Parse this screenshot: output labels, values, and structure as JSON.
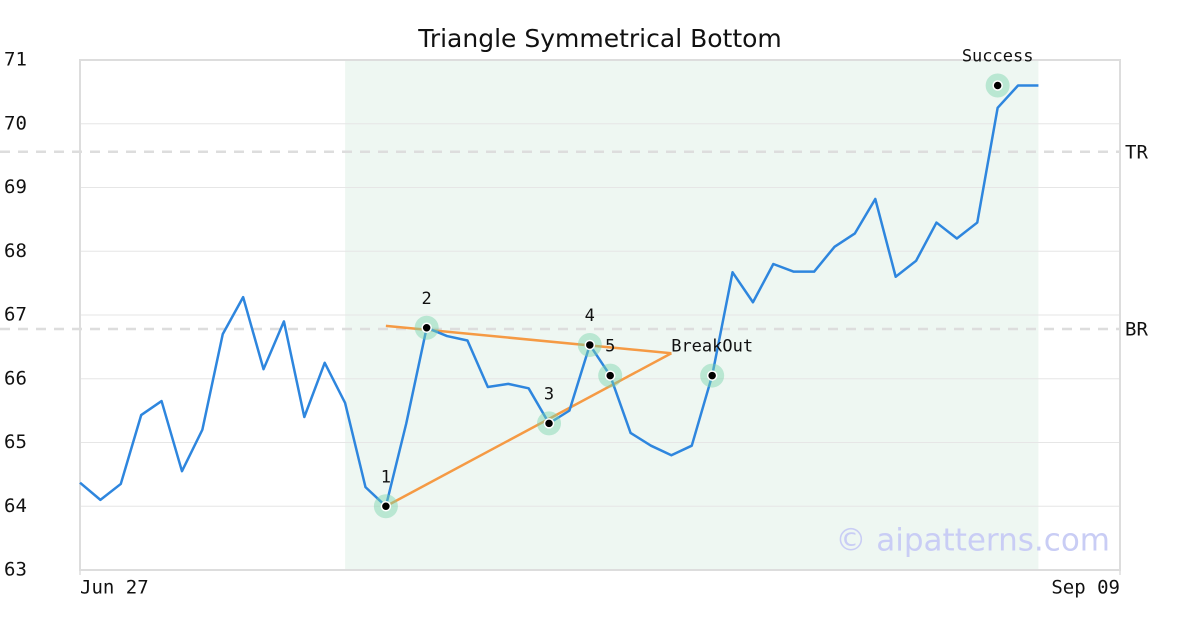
{
  "chart_data": {
    "type": "line",
    "title": "Triangle Symmetrical Bottom",
    "x": [
      0,
      1,
      2,
      3,
      4,
      5,
      6,
      7,
      8,
      9,
      10,
      11,
      12,
      13,
      14,
      15,
      16,
      17,
      18,
      19,
      20,
      21,
      22,
      23,
      24,
      25,
      26,
      27,
      28,
      29,
      30,
      31,
      32,
      33,
      34,
      35,
      36,
      37,
      38,
      39,
      40,
      41,
      42,
      43,
      44,
      45,
      46,
      47
    ],
    "values": [
      64.37,
      64.1,
      64.35,
      65.43,
      65.65,
      64.55,
      65.2,
      66.7,
      67.28,
      66.15,
      66.9,
      65.4,
      66.25,
      65.62,
      64.3,
      64.0,
      65.3,
      66.8,
      66.67,
      66.6,
      65.87,
      65.92,
      65.85,
      65.3,
      65.5,
      66.53,
      66.05,
      65.15,
      64.95,
      64.8,
      64.95,
      66.05,
      67.67,
      67.2,
      67.8,
      67.68,
      67.68,
      68.07,
      68.28,
      68.82,
      67.6,
      67.85,
      68.45,
      68.2,
      68.45,
      70.25,
      70.6,
      70.6
    ],
    "color": "#2e86de",
    "xlim": [
      0,
      51
    ],
    "xticks": [
      {
        "value": 0,
        "label": "Jun 27"
      },
      {
        "value": 51,
        "label": "Sep 09"
      }
    ],
    "ylim": [
      63,
      71
    ],
    "yticks": [
      63,
      64,
      65,
      66,
      67,
      68,
      69,
      70,
      71
    ],
    "grid": true,
    "shade": {
      "x": [
        13,
        47
      ],
      "color": "#eef7f2"
    },
    "hlines": [
      {
        "label": "TR",
        "value": 69.56
      },
      {
        "label": "BR",
        "value": 66.78
      }
    ],
    "trendlines": {
      "color": "#f59a44",
      "lines": [
        {
          "x": [
            15,
            29
          ],
          "y": [
            66.83,
            66.4
          ]
        },
        {
          "x": [
            15,
            29
          ],
          "y": [
            64.0,
            66.4
          ]
        }
      ]
    },
    "markers": [
      {
        "label": "1",
        "x": 15,
        "y": 64.0
      },
      {
        "label": "2",
        "x": 17,
        "y": 66.8
      },
      {
        "label": "3",
        "x": 23,
        "y": 65.3
      },
      {
        "label": "4",
        "x": 25,
        "y": 66.53
      },
      {
        "label": "5",
        "x": 26,
        "y": 66.05
      },
      {
        "label": "BreakOut",
        "x": 31,
        "y": 66.05
      },
      {
        "label": "Success",
        "x": 45,
        "y": 70.6
      }
    ],
    "watermark": "© aipatterns.com"
  }
}
